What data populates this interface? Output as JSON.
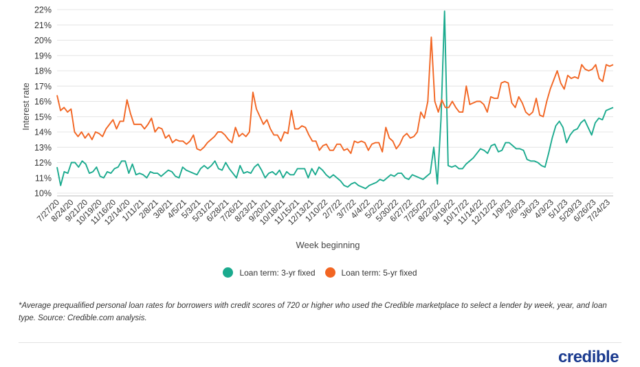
{
  "chart_data": {
    "type": "line",
    "ylabel": "Interest rate",
    "xlabel": "Week beginning",
    "ylim": [
      10,
      22
    ],
    "yticks": [
      "10%",
      "11%",
      "12%",
      "13%",
      "14%",
      "15%",
      "16%",
      "17%",
      "18%",
      "19%",
      "20%",
      "21%",
      "22%"
    ],
    "x_tick_labels": [
      "7/27/20",
      "8/24/20",
      "9/21/20",
      "10/19/20",
      "11/16/20",
      "12/14/20",
      "1/11/21",
      "2/8/21",
      "3/8/21",
      "4/5/21",
      "5/3/21",
      "5/31/21",
      "6/28/21",
      "7/26/21",
      "8/23/21",
      "9/20/21",
      "10/18/21",
      "11/15/21",
      "12/13/21",
      "1/10/22",
      "2/7/22",
      "3/7/22",
      "4/4/22",
      "5/2/22",
      "5/30/22",
      "6/27/22",
      "7/25/22",
      "8/22/22",
      "9/19/22",
      "10/17/22",
      "11/14/22",
      "12/12/22",
      "1/9/23",
      "2/6/23",
      "3/6/23",
      "4/3/23",
      "5/1/23",
      "5/29/23",
      "6/26/23",
      "7/24/23"
    ],
    "legend_position": "bottom",
    "series": [
      {
        "name": "Loan term: 3-yr fixed",
        "color": "#1aaa8e",
        "values": [
          11.7,
          10.5,
          11.4,
          11.3,
          12.0,
          12.0,
          11.7,
          12.1,
          11.9,
          11.3,
          11.4,
          11.7,
          11.1,
          11.0,
          11.4,
          11.3,
          11.6,
          11.7,
          12.1,
          12.1,
          11.3,
          11.9,
          11.2,
          11.3,
          11.2,
          11.0,
          11.4,
          11.3,
          11.3,
          11.1,
          11.3,
          11.5,
          11.4,
          11.1,
          11.0,
          11.7,
          11.5,
          11.4,
          11.3,
          11.2,
          11.6,
          11.8,
          11.6,
          11.8,
          12.1,
          11.6,
          11.5,
          12.0,
          11.6,
          11.3,
          11.0,
          11.8,
          11.3,
          11.4,
          11.3,
          11.7,
          11.9,
          11.5,
          11.0,
          11.3,
          11.4,
          11.2,
          11.5,
          11.0,
          11.4,
          11.2,
          11.2,
          11.6,
          11.6,
          11.6,
          11.0,
          11.6,
          11.2,
          11.7,
          11.5,
          11.2,
          11.0,
          11.2,
          11.0,
          10.8,
          10.5,
          10.4,
          10.6,
          10.7,
          10.5,
          10.4,
          10.3,
          10.5,
          10.6,
          10.7,
          10.9,
          10.8,
          11.0,
          11.2,
          11.1,
          11.3,
          11.3,
          11.0,
          10.9,
          11.2,
          11.1,
          11.0,
          10.9,
          11.1,
          11.3,
          13.0,
          10.6,
          14.8,
          21.9,
          11.8,
          11.7,
          11.8,
          11.6,
          11.6,
          11.9,
          12.1,
          12.3,
          12.6,
          12.9,
          12.8,
          12.6,
          13.1,
          13.2,
          12.7,
          12.8,
          13.3,
          13.3,
          13.1,
          12.9,
          12.9,
          12.8,
          12.2,
          12.1,
          12.1,
          12.0,
          11.8,
          11.7,
          12.6,
          13.6,
          14.4,
          14.7,
          14.3,
          13.3,
          13.8,
          14.1,
          14.2,
          14.6,
          14.8,
          14.3,
          13.8,
          14.6,
          14.9,
          14.8,
          15.4,
          15.5,
          15.6
        ]
      },
      {
        "name": "Loan term: 5-yr fixed",
        "color": "#f26522",
        "values": [
          16.4,
          15.4,
          15.6,
          15.3,
          15.5,
          14.0,
          13.7,
          14.0,
          13.6,
          13.9,
          13.5,
          14.0,
          13.9,
          13.7,
          14.2,
          14.5,
          14.8,
          14.2,
          14.7,
          14.7,
          16.1,
          15.2,
          14.5,
          14.5,
          14.5,
          14.2,
          14.5,
          14.9,
          14.0,
          14.3,
          14.2,
          13.6,
          13.8,
          13.3,
          13.5,
          13.4,
          13.4,
          13.2,
          13.4,
          13.8,
          12.9,
          12.8,
          13.0,
          13.3,
          13.5,
          13.7,
          14.0,
          14.0,
          13.8,
          13.5,
          13.3,
          14.3,
          13.7,
          13.9,
          13.7,
          14.0,
          16.6,
          15.5,
          15.0,
          14.5,
          14.8,
          14.2,
          13.8,
          13.8,
          13.4,
          14.0,
          13.9,
          15.4,
          14.2,
          14.2,
          14.4,
          14.3,
          13.8,
          13.4,
          13.4,
          12.8,
          13.1,
          13.2,
          12.8,
          12.8,
          13.2,
          13.2,
          12.8,
          12.9,
          12.6,
          13.4,
          13.3,
          13.4,
          13.3,
          12.8,
          13.2,
          13.3,
          13.3,
          12.7,
          14.3,
          13.6,
          13.4,
          12.9,
          13.2,
          13.7,
          13.9,
          13.6,
          13.7,
          14.0,
          15.3,
          14.9,
          16.0,
          20.2,
          16.0,
          15.3,
          16.1,
          15.6,
          15.6,
          16.0,
          15.6,
          15.3,
          15.3,
          17.0,
          15.8,
          15.9,
          16.0,
          16.0,
          15.8,
          15.3,
          16.3,
          16.2,
          16.2,
          17.2,
          17.3,
          17.2,
          15.9,
          15.6,
          16.3,
          15.9,
          15.3,
          15.1,
          15.3,
          16.2,
          15.1,
          15.0,
          16.0,
          16.8,
          17.4,
          18.0,
          17.2,
          16.8,
          17.7,
          17.5,
          17.6,
          17.5,
          18.4,
          18.1,
          18.0,
          18.1,
          18.4,
          17.5,
          17.3,
          18.4,
          18.3,
          18.4
        ]
      }
    ]
  },
  "footnote": "*Average prequalified personal loan rates for borrowers with credit scores of 720 or higher who used the Credible marketplace to select a lender by week, year, and loan type. Source: Credible.com analysis.",
  "logo_text": "credible"
}
